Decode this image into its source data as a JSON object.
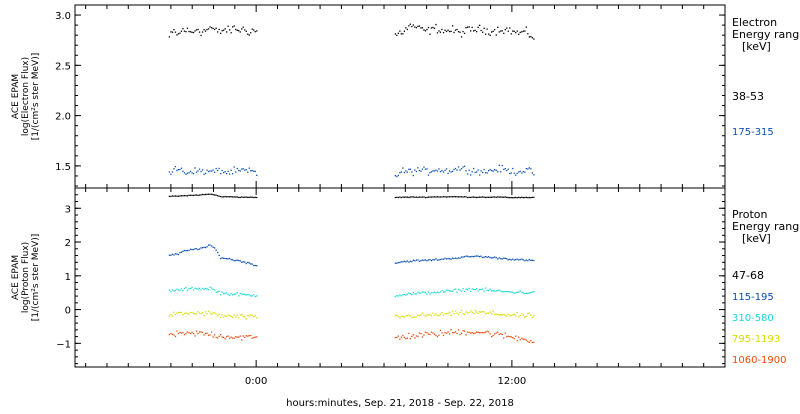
{
  "chart_data": [
    {
      "type": "scatter",
      "panel": "electron",
      "ylabel_lines": [
        "ACE EPAM",
        "log(Electron Flux)",
        "[1/(cm²s ster MeV)]"
      ],
      "legend_title_lines": [
        "Electron",
        "Energy range",
        "[keV]"
      ],
      "ylim": [
        1.28,
        3.1
      ],
      "yticks": [
        1.5,
        2.0,
        2.5,
        3.0
      ],
      "ytick_labels": [
        "1.5",
        "2.0",
        "2.5",
        "3.0"
      ],
      "series": [
        {
          "name": "38-53",
          "color": "#000000",
          "mean": 2.84,
          "spread": 0.06,
          "segments": [
            {
              "start": -4.1,
              "end": 0.0,
              "values": [
                2.78,
                2.84,
                2.8,
                2.86,
                2.84,
                2.82,
                2.87,
                2.83,
                2.85,
                2.88,
                2.84,
                2.83,
                2.86,
                2.84,
                2.87,
                2.85,
                2.86,
                2.83,
                2.85,
                2.84
              ]
            },
            {
              "start": 6.5,
              "end": 13.0,
              "values": [
                2.8,
                2.84,
                2.9,
                2.86,
                2.84,
                2.87,
                2.84,
                2.85,
                2.82,
                2.85,
                2.86,
                2.85,
                2.84,
                2.86,
                2.85,
                2.82,
                2.83,
                2.78
              ]
            }
          ]
        },
        {
          "name": "175-315",
          "color": "#0b4fb4",
          "mean": 1.44,
          "spread": 0.05,
          "segments": [
            {
              "start": -4.1,
              "end": 0.0,
              "values": [
                1.42,
                1.46,
                1.47,
                1.45,
                1.43,
                1.46,
                1.44,
                1.46,
                1.43,
                1.45,
                1.44,
                1.46,
                1.44,
                1.43,
                1.45,
                1.44,
                1.46,
                1.44,
                1.45,
                1.42
              ]
            },
            {
              "start": 6.5,
              "end": 13.0,
              "values": [
                1.4,
                1.45,
                1.44,
                1.46,
                1.44,
                1.47,
                1.45,
                1.46,
                1.48,
                1.46,
                1.45,
                1.44,
                1.46,
                1.47,
                1.45,
                1.44,
                1.46,
                1.43
              ]
            }
          ]
        }
      ]
    },
    {
      "type": "scatter",
      "panel": "proton",
      "ylabel_lines": [
        "ACE EPAM",
        "log(Proton Flux)",
        "[1/(cm²s ster MeV)]"
      ],
      "legend_title_lines": [
        "Proton",
        "Energy range",
        "[keV]"
      ],
      "ylim": [
        -1.7,
        3.6
      ],
      "yticks": [
        -1,
        0,
        1,
        2,
        3
      ],
      "ytick_labels": [
        "−1",
        "0",
        "1",
        "2",
        "3"
      ],
      "series": [
        {
          "name": "47-68",
          "color": "#000000",
          "mean": 3.35,
          "spread": 0.015,
          "segments": [
            {
              "start": -4.1,
              "end": 0.0,
              "values": [
                3.35,
                3.36,
                3.36,
                3.37,
                3.38,
                3.38,
                3.39,
                3.4,
                3.41,
                3.42,
                3.39,
                3.35,
                3.34,
                3.34,
                3.34,
                3.33,
                3.33,
                3.33,
                3.32,
                3.32
              ]
            },
            {
              "start": 6.5,
              "end": 13.0,
              "values": [
                3.32,
                3.33,
                3.33,
                3.33,
                3.33,
                3.34,
                3.34,
                3.34,
                3.34,
                3.33,
                3.33,
                3.33,
                3.33,
                3.33,
                3.32,
                3.32,
                3.32,
                3.32
              ]
            }
          ]
        },
        {
          "name": "115-195",
          "color": "#0b4fb4",
          "mean": 1.5,
          "spread": 0.04,
          "segments": [
            {
              "start": -4.1,
              "end": 0.0,
              "values": [
                1.62,
                1.62,
                1.65,
                1.72,
                1.75,
                1.78,
                1.8,
                1.82,
                1.85,
                1.9,
                1.8,
                1.55,
                1.52,
                1.5,
                1.47,
                1.45,
                1.42,
                1.38,
                1.35,
                1.3
              ]
            },
            {
              "start": 6.5,
              "end": 13.0,
              "values": [
                1.38,
                1.42,
                1.44,
                1.45,
                1.46,
                1.48,
                1.5,
                1.52,
                1.54,
                1.57,
                1.58,
                1.56,
                1.54,
                1.52,
                1.5,
                1.48,
                1.46,
                1.45
              ]
            }
          ]
        },
        {
          "name": "310-580",
          "color": "#17d8d8",
          "mean": 0.55,
          "spread": 0.07,
          "segments": [
            {
              "start": -4.1,
              "end": 0.0,
              "values": [
                0.55,
                0.58,
                0.57,
                0.6,
                0.6,
                0.62,
                0.63,
                0.62,
                0.62,
                0.64,
                0.55,
                0.5,
                0.48,
                0.47,
                0.45,
                0.45,
                0.44,
                0.43,
                0.42,
                0.42
              ]
            },
            {
              "start": 6.5,
              "end": 13.0,
              "values": [
                0.42,
                0.45,
                0.47,
                0.48,
                0.5,
                0.52,
                0.53,
                0.55,
                0.58,
                0.6,
                0.6,
                0.58,
                0.56,
                0.54,
                0.52,
                0.52,
                0.5,
                0.5
              ]
            }
          ]
        },
        {
          "name": "795-1193",
          "color": "#d8dc00",
          "mean": -0.15,
          "spread": 0.1,
          "segments": [
            {
              "start": -4.1,
              "end": 0.0,
              "values": [
                -0.15,
                -0.14,
                -0.13,
                -0.12,
                -0.11,
                -0.11,
                -0.1,
                -0.11,
                -0.12,
                -0.1,
                -0.15,
                -0.18,
                -0.19,
                -0.2,
                -0.2,
                -0.21,
                -0.21,
                -0.22,
                -0.22,
                -0.22
              ]
            },
            {
              "start": 6.5,
              "end": 13.0,
              "values": [
                -0.22,
                -0.2,
                -0.19,
                -0.18,
                -0.17,
                -0.15,
                -0.14,
                -0.12,
                -0.1,
                -0.08,
                -0.08,
                -0.1,
                -0.12,
                -0.14,
                -0.16,
                -0.17,
                -0.18,
                -0.18
              ]
            }
          ]
        },
        {
          "name": "1060-1900",
          "color": "#e64c0a",
          "mean": -0.75,
          "spread": 0.14,
          "segments": [
            {
              "start": -4.1,
              "end": 0.0,
              "values": [
                -0.75,
                -0.74,
                -0.73,
                -0.72,
                -0.72,
                -0.71,
                -0.7,
                -0.71,
                -0.72,
                -0.72,
                -0.76,
                -0.78,
                -0.79,
                -0.8,
                -0.8,
                -0.81,
                -0.82,
                -0.82,
                -0.83,
                -0.83
              ]
            },
            {
              "start": 6.5,
              "end": 13.0,
              "values": [
                -0.83,
                -0.8,
                -0.78,
                -0.76,
                -0.74,
                -0.72,
                -0.7,
                -0.68,
                -0.66,
                -0.65,
                -0.66,
                -0.68,
                -0.72,
                -0.76,
                -0.8,
                -0.84,
                -0.88,
                -0.92
              ]
            }
          ]
        }
      ]
    }
  ],
  "x_axis": {
    "xlim": [
      -8.5,
      22.0
    ],
    "major_ticks": [
      0,
      12
    ],
    "tick_labels": [
      "0:00",
      "12:00"
    ],
    "minor_step": 1,
    "xlabel": "hours:minutes, Sep. 21, 2018 - Sep. 22, 2018"
  }
}
